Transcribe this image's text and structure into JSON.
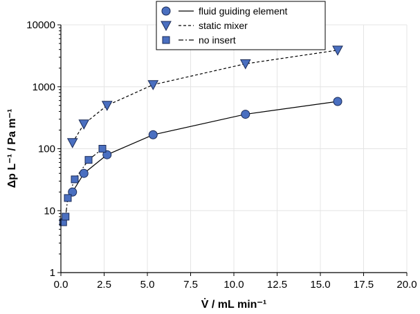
{
  "chart_data": {
    "type": "scatter",
    "title": "",
    "xlabel": "V̇ / mL min⁻¹",
    "ylabel": "Δp L⁻¹ / Pa m⁻¹",
    "xlim": [
      0,
      20
    ],
    "ylim": [
      1,
      10000
    ],
    "yscale": "log",
    "grid": true,
    "legend_position": "top",
    "x_tick_labels": [
      "0.0",
      "2.5",
      "5.0",
      "7.5",
      "10.0",
      "12.5",
      "15.0",
      "17.5",
      "20.0"
    ],
    "y_tick_labels": [
      "1",
      "10",
      "100",
      "1000",
      "10000"
    ],
    "series": [
      {
        "name": "fluid guiding element",
        "marker": "circle",
        "line": "solid",
        "x": [
          0.67,
          1.33,
          2.67,
          5.33,
          10.67,
          16.0
        ],
        "y": [
          20,
          40,
          80,
          168,
          360,
          580
        ]
      },
      {
        "name": "static mixer",
        "marker": "triangle-down",
        "line": "dashed",
        "x": [
          0.67,
          1.33,
          2.67,
          5.33,
          10.67,
          16.0
        ],
        "y": [
          125,
          250,
          500,
          1080,
          2350,
          3900
        ]
      },
      {
        "name": "no insert",
        "marker": "square",
        "line": "dash-dot",
        "x": [
          0.13,
          0.27,
          0.4,
          0.8,
          1.6,
          2.4
        ],
        "y": [
          6.5,
          8,
          16,
          32,
          66,
          100
        ]
      }
    ]
  },
  "colors": {
    "marker_fill": "#4a6fc0",
    "marker_stroke": "#1a2a55",
    "grid": "#e4e4e4",
    "axis": "#000000"
  }
}
